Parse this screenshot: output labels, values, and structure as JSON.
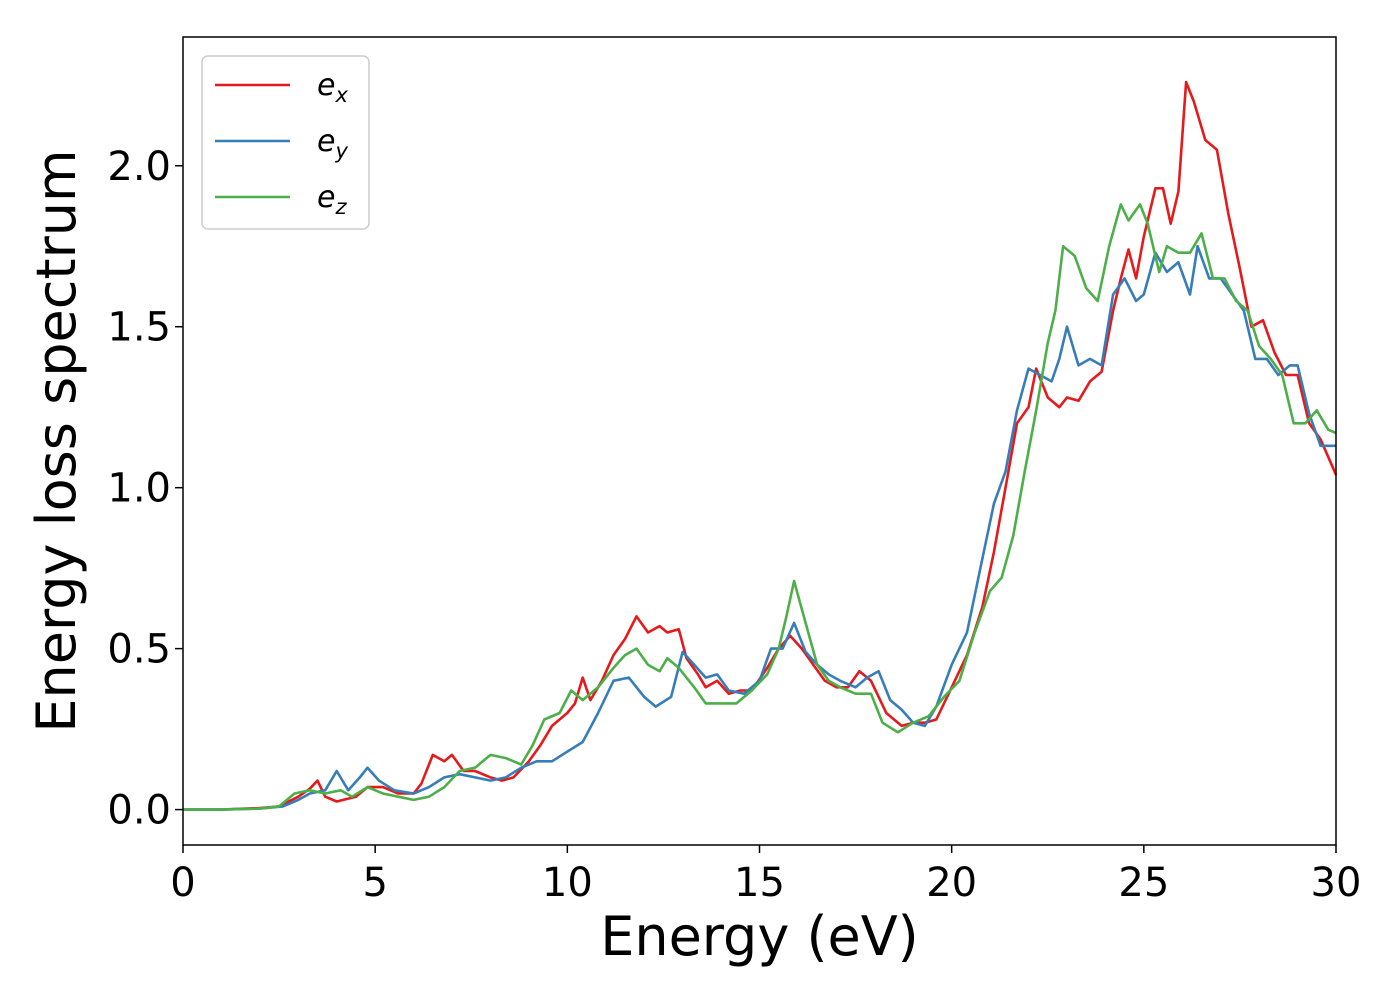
{
  "chart_data": {
    "type": "line",
    "title": "",
    "xlabel": "Energy (eV)",
    "ylabel": "Energy loss spectrum",
    "xlim": [
      0,
      30
    ],
    "ylim": [
      -0.11,
      2.4
    ],
    "xticks": [
      0,
      5,
      10,
      15,
      20,
      25,
      30
    ],
    "xtick_labels": [
      "0",
      "5",
      "10",
      "15",
      "20",
      "25",
      "30"
    ],
    "yticks": [
      0.0,
      0.5,
      1.0,
      1.5,
      2.0
    ],
    "ytick_labels": [
      "0.0",
      "0.5",
      "1.0",
      "1.5",
      "2.0"
    ],
    "grid": false,
    "legend_position": "top-left",
    "series": [
      {
        "name": "x",
        "legend_base": "e",
        "color": "#e41a1c",
        "points": [
          [
            0,
            0
          ],
          [
            1,
            0
          ],
          [
            2,
            0.005
          ],
          [
            2.5,
            0.01
          ],
          [
            3,
            0.04
          ],
          [
            3.3,
            0.065
          ],
          [
            3.5,
            0.09
          ],
          [
            3.7,
            0.04
          ],
          [
            4,
            0.025
          ],
          [
            4.5,
            0.04
          ],
          [
            4.8,
            0.07
          ],
          [
            5.2,
            0.07
          ],
          [
            5.6,
            0.05
          ],
          [
            6,
            0.05
          ],
          [
            6.2,
            0.08
          ],
          [
            6.5,
            0.17
          ],
          [
            6.8,
            0.15
          ],
          [
            7,
            0.17
          ],
          [
            7.3,
            0.12
          ],
          [
            7.6,
            0.12
          ],
          [
            8,
            0.1
          ],
          [
            8.3,
            0.09
          ],
          [
            8.6,
            0.1
          ],
          [
            9,
            0.15
          ],
          [
            9.3,
            0.2
          ],
          [
            9.6,
            0.26
          ],
          [
            10,
            0.3
          ],
          [
            10.2,
            0.33
          ],
          [
            10.4,
            0.41
          ],
          [
            10.6,
            0.34
          ],
          [
            10.9,
            0.4
          ],
          [
            11.2,
            0.48
          ],
          [
            11.5,
            0.53
          ],
          [
            11.8,
            0.6
          ],
          [
            12.1,
            0.55
          ],
          [
            12.4,
            0.57
          ],
          [
            12.6,
            0.55
          ],
          [
            12.9,
            0.56
          ],
          [
            13.1,
            0.47
          ],
          [
            13.4,
            0.42
          ],
          [
            13.6,
            0.38
          ],
          [
            13.9,
            0.4
          ],
          [
            14.2,
            0.36
          ],
          [
            14.5,
            0.37
          ],
          [
            14.8,
            0.37
          ],
          [
            15.2,
            0.44
          ],
          [
            15.5,
            0.5
          ],
          [
            15.8,
            0.54
          ],
          [
            16.1,
            0.5
          ],
          [
            16.4,
            0.45
          ],
          [
            16.7,
            0.4
          ],
          [
            17,
            0.38
          ],
          [
            17.3,
            0.38
          ],
          [
            17.6,
            0.43
          ],
          [
            17.9,
            0.4
          ],
          [
            18.3,
            0.3
          ],
          [
            18.7,
            0.26
          ],
          [
            19,
            0.27
          ],
          [
            19.3,
            0.27
          ],
          [
            19.6,
            0.28
          ],
          [
            20,
            0.38
          ],
          [
            20.4,
            0.48
          ],
          [
            20.8,
            0.63
          ],
          [
            21.1,
            0.8
          ],
          [
            21.4,
            1.0
          ],
          [
            21.7,
            1.2
          ],
          [
            22,
            1.25
          ],
          [
            22.2,
            1.37
          ],
          [
            22.5,
            1.28
          ],
          [
            22.8,
            1.25
          ],
          [
            23,
            1.28
          ],
          [
            23.3,
            1.27
          ],
          [
            23.6,
            1.33
          ],
          [
            23.9,
            1.36
          ],
          [
            24.2,
            1.55
          ],
          [
            24.4,
            1.65
          ],
          [
            24.6,
            1.74
          ],
          [
            24.8,
            1.65
          ],
          [
            25,
            1.78
          ],
          [
            25.3,
            1.93
          ],
          [
            25.5,
            1.93
          ],
          [
            25.7,
            1.82
          ],
          [
            25.9,
            1.92
          ],
          [
            26.1,
            2.26
          ],
          [
            26.3,
            2.2
          ],
          [
            26.6,
            2.08
          ],
          [
            26.9,
            2.05
          ],
          [
            27.2,
            1.85
          ],
          [
            27.5,
            1.68
          ],
          [
            27.8,
            1.5
          ],
          [
            28.1,
            1.52
          ],
          [
            28.4,
            1.42
          ],
          [
            28.7,
            1.35
          ],
          [
            29,
            1.35
          ],
          [
            29.3,
            1.2
          ],
          [
            29.6,
            1.15
          ],
          [
            30,
            1.04
          ]
        ]
      },
      {
        "name": "y",
        "legend_base": "e",
        "color": "#377eb8",
        "points": [
          [
            0,
            0
          ],
          [
            1,
            0
          ],
          [
            2,
            0.003
          ],
          [
            2.6,
            0.01
          ],
          [
            3,
            0.03
          ],
          [
            3.3,
            0.05
          ],
          [
            3.7,
            0.06
          ],
          [
            4,
            0.12
          ],
          [
            4.3,
            0.06
          ],
          [
            4.6,
            0.1
          ],
          [
            4.8,
            0.13
          ],
          [
            5.1,
            0.09
          ],
          [
            5.5,
            0.06
          ],
          [
            6,
            0.05
          ],
          [
            6.4,
            0.07
          ],
          [
            6.8,
            0.1
          ],
          [
            7.2,
            0.11
          ],
          [
            7.6,
            0.1
          ],
          [
            8,
            0.09
          ],
          [
            8.4,
            0.1
          ],
          [
            8.8,
            0.13
          ],
          [
            9.2,
            0.15
          ],
          [
            9.6,
            0.15
          ],
          [
            10,
            0.18
          ],
          [
            10.4,
            0.21
          ],
          [
            10.8,
            0.3
          ],
          [
            11.2,
            0.4
          ],
          [
            11.6,
            0.41
          ],
          [
            12,
            0.35
          ],
          [
            12.3,
            0.32
          ],
          [
            12.7,
            0.35
          ],
          [
            13,
            0.49
          ],
          [
            13.3,
            0.45
          ],
          [
            13.6,
            0.41
          ],
          [
            13.9,
            0.42
          ],
          [
            14.2,
            0.37
          ],
          [
            14.6,
            0.36
          ],
          [
            15,
            0.4
          ],
          [
            15.3,
            0.5
          ],
          [
            15.6,
            0.5
          ],
          [
            15.9,
            0.58
          ],
          [
            16.2,
            0.49
          ],
          [
            16.5,
            0.45
          ],
          [
            16.8,
            0.42
          ],
          [
            17.1,
            0.4
          ],
          [
            17.5,
            0.38
          ],
          [
            17.8,
            0.41
          ],
          [
            18.1,
            0.43
          ],
          [
            18.4,
            0.34
          ],
          [
            18.7,
            0.31
          ],
          [
            19,
            0.27
          ],
          [
            19.3,
            0.26
          ],
          [
            19.6,
            0.32
          ],
          [
            20,
            0.45
          ],
          [
            20.4,
            0.55
          ],
          [
            20.8,
            0.78
          ],
          [
            21.1,
            0.95
          ],
          [
            21.4,
            1.05
          ],
          [
            21.7,
            1.24
          ],
          [
            22,
            1.37
          ],
          [
            22.3,
            1.35
          ],
          [
            22.6,
            1.33
          ],
          [
            22.8,
            1.4
          ],
          [
            23,
            1.5
          ],
          [
            23.3,
            1.38
          ],
          [
            23.6,
            1.4
          ],
          [
            23.9,
            1.38
          ],
          [
            24.2,
            1.6
          ],
          [
            24.5,
            1.65
          ],
          [
            24.8,
            1.58
          ],
          [
            25,
            1.6
          ],
          [
            25.3,
            1.73
          ],
          [
            25.6,
            1.67
          ],
          [
            25.9,
            1.7
          ],
          [
            26.2,
            1.6
          ],
          [
            26.4,
            1.75
          ],
          [
            26.7,
            1.65
          ],
          [
            27,
            1.65
          ],
          [
            27.3,
            1.6
          ],
          [
            27.6,
            1.55
          ],
          [
            27.9,
            1.4
          ],
          [
            28.2,
            1.4
          ],
          [
            28.5,
            1.35
          ],
          [
            28.8,
            1.38
          ],
          [
            29,
            1.38
          ],
          [
            29.3,
            1.23
          ],
          [
            29.6,
            1.13
          ],
          [
            30,
            1.13
          ]
        ]
      },
      {
        "name": "z",
        "legend_base": "e",
        "color": "#4daf4a",
        "points": [
          [
            0,
            0
          ],
          [
            1,
            0
          ],
          [
            2,
            0.003
          ],
          [
            2.5,
            0.01
          ],
          [
            2.9,
            0.05
          ],
          [
            3.3,
            0.06
          ],
          [
            3.7,
            0.05
          ],
          [
            4.1,
            0.06
          ],
          [
            4.4,
            0.04
          ],
          [
            4.8,
            0.07
          ],
          [
            5.2,
            0.05
          ],
          [
            5.6,
            0.04
          ],
          [
            6,
            0.03
          ],
          [
            6.4,
            0.04
          ],
          [
            6.8,
            0.07
          ],
          [
            7.2,
            0.12
          ],
          [
            7.6,
            0.13
          ],
          [
            8,
            0.17
          ],
          [
            8.4,
            0.16
          ],
          [
            8.8,
            0.14
          ],
          [
            9.1,
            0.2
          ],
          [
            9.4,
            0.28
          ],
          [
            9.8,
            0.3
          ],
          [
            10.1,
            0.37
          ],
          [
            10.4,
            0.34
          ],
          [
            10.8,
            0.38
          ],
          [
            11.2,
            0.44
          ],
          [
            11.5,
            0.48
          ],
          [
            11.8,
            0.5
          ],
          [
            12.1,
            0.45
          ],
          [
            12.4,
            0.43
          ],
          [
            12.6,
            0.47
          ],
          [
            12.9,
            0.44
          ],
          [
            13.3,
            0.38
          ],
          [
            13.6,
            0.33
          ],
          [
            14,
            0.33
          ],
          [
            14.4,
            0.33
          ],
          [
            14.8,
            0.37
          ],
          [
            15.2,
            0.42
          ],
          [
            15.5,
            0.5
          ],
          [
            15.7,
            0.6
          ],
          [
            15.9,
            0.71
          ],
          [
            16.2,
            0.58
          ],
          [
            16.5,
            0.45
          ],
          [
            16.8,
            0.4
          ],
          [
            17.1,
            0.38
          ],
          [
            17.5,
            0.36
          ],
          [
            17.9,
            0.36
          ],
          [
            18.2,
            0.27
          ],
          [
            18.6,
            0.24
          ],
          [
            19,
            0.27
          ],
          [
            19.4,
            0.29
          ],
          [
            19.8,
            0.35
          ],
          [
            20.2,
            0.4
          ],
          [
            20.6,
            0.55
          ],
          [
            21,
            0.68
          ],
          [
            21.3,
            0.72
          ],
          [
            21.6,
            0.85
          ],
          [
            21.9,
            1.05
          ],
          [
            22.2,
            1.24
          ],
          [
            22.5,
            1.45
          ],
          [
            22.7,
            1.55
          ],
          [
            22.9,
            1.75
          ],
          [
            23.2,
            1.72
          ],
          [
            23.5,
            1.62
          ],
          [
            23.8,
            1.58
          ],
          [
            24.1,
            1.75
          ],
          [
            24.4,
            1.88
          ],
          [
            24.6,
            1.83
          ],
          [
            24.9,
            1.88
          ],
          [
            25.1,
            1.82
          ],
          [
            25.4,
            1.67
          ],
          [
            25.6,
            1.75
          ],
          [
            25.9,
            1.73
          ],
          [
            26.2,
            1.73
          ],
          [
            26.5,
            1.79
          ],
          [
            26.8,
            1.65
          ],
          [
            27.1,
            1.65
          ],
          [
            27.4,
            1.58
          ],
          [
            27.7,
            1.55
          ],
          [
            28,
            1.44
          ],
          [
            28.3,
            1.4
          ],
          [
            28.6,
            1.35
          ],
          [
            28.9,
            1.2
          ],
          [
            29.2,
            1.2
          ],
          [
            29.5,
            1.24
          ],
          [
            29.8,
            1.18
          ],
          [
            30,
            1.17
          ]
        ]
      }
    ]
  }
}
